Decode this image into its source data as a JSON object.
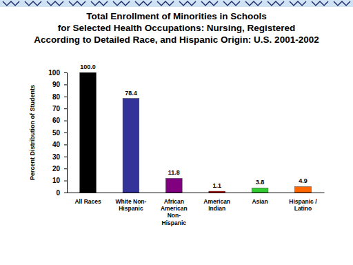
{
  "chart_data": {
    "type": "bar",
    "title": "Total Enrollment of Minorities in Schools\nfor Selected Health Occupations: Nursing, Registered\nAccording to Detailed Race, and Hispanic Origin: U.S. 2001-2002",
    "y_label": "Percent Distribution of Students",
    "categories": [
      "All Races",
      "White Non-\nHispanic",
      "African\nAmerican\nNon-\nHispanic",
      "American\nIndian",
      "Asian",
      "Hispanic /\nLatino"
    ],
    "values": [
      100,
      78.4,
      11.8,
      1.1,
      3.8,
      4.9
    ],
    "value_labels": [
      "100.0",
      "78.4",
      "11.8",
      "1.1",
      "3.8",
      "4.9"
    ],
    "colors": [
      "#000000",
      "#333399",
      "#800080",
      "#cc0000",
      "#33cc33",
      "#ff6600"
    ],
    "ylim": [
      0,
      100
    ],
    "yticks": [
      0,
      10,
      20,
      30,
      40,
      50,
      60,
      70,
      80,
      90,
      100
    ],
    "grid": false,
    "data_labels": true
  }
}
